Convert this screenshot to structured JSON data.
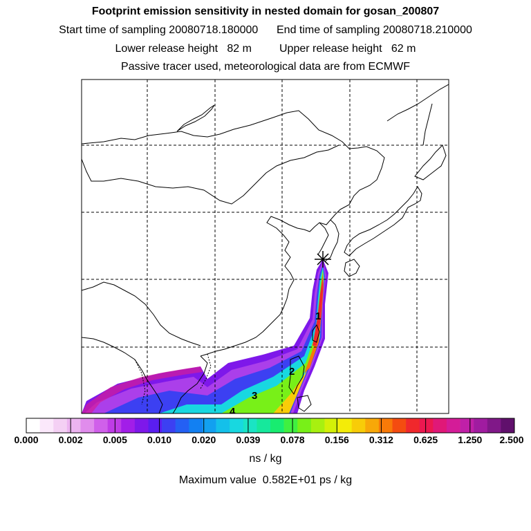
{
  "header": {
    "title": "Footprint emission sensitivity in nested domain for gosan_200807",
    "start_time": "Start time of sampling 20080718.180000",
    "end_time": "End time of sampling 20080718.210000",
    "lower_height": "Lower release height   82 m",
    "upper_height": "Upper release height   62 m",
    "tracer_note": "Passive tracer used, meteorological data are from ECMWF"
  },
  "map": {
    "contour_labels": [
      "1",
      "2",
      "3",
      "4"
    ],
    "colors": {
      "coast": "#000000",
      "grid": "#000000"
    }
  },
  "legend": {
    "ticks": [
      "0.000",
      "0.002",
      "0.005",
      "0.010",
      "0.020",
      "0.039",
      "0.078",
      "0.156",
      "0.312",
      "0.625",
      "1.250",
      "2.500"
    ],
    "colors": [
      "#ffffff",
      "#fbe8fb",
      "#f4d0f4",
      "#ecb4f0",
      "#e08cec",
      "#d060ea",
      "#bf3ce6",
      "#a21ee8",
      "#7e18ea",
      "#5a1ef0",
      "#3c40f2",
      "#2460f4",
      "#1280f2",
      "#12a0f0",
      "#14c0ea",
      "#18d8e0",
      "#1ae4c4",
      "#16e89c",
      "#18ec70",
      "#40f040",
      "#78f018",
      "#a8f010",
      "#d4f008",
      "#f4ec08",
      "#f8cc08",
      "#f8a808",
      "#f87a08",
      "#f44c10",
      "#f0282c",
      "#ec1850",
      "#e01878",
      "#d41c98",
      "#c020a8",
      "#a01ca0",
      "#801888",
      "#60106c"
    ],
    "unit": "ns / kg",
    "max_value": "Maximum value  0.582E+01 ps / kg"
  }
}
